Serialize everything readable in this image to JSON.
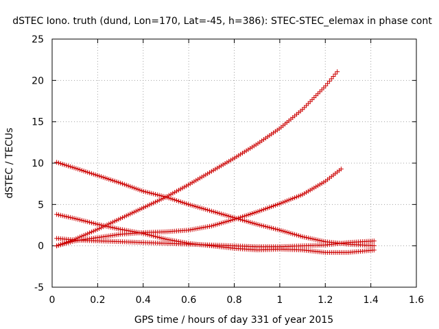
{
  "chart_data": {
    "type": "scatter",
    "title": "dSTEC Iono. truth (dund, Lon=170, Lat=-45, h=386): STEC-STEC_elemax in phase cont",
    "xlabel": "GPS time / hours of day 331 of year 2015",
    "ylabel": "dSTEC  / TECUs",
    "xlim": [
      0,
      1.6
    ],
    "ylim": [
      -5,
      25
    ],
    "xticks": [
      0,
      0.2,
      0.4,
      0.6,
      0.8,
      1,
      1.2,
      1.4,
      1.6
    ],
    "yticks": [
      -5,
      0,
      5,
      10,
      15,
      20,
      25
    ],
    "xtick_labels": [
      "0",
      "0.2",
      "0.4",
      "0.6",
      "0.8",
      "1",
      "1.2",
      "1.4",
      "1.6"
    ],
    "ytick_labels": [
      "-5",
      "0",
      "5",
      "10",
      "15",
      "20",
      "25"
    ],
    "grid": true,
    "marker": "+",
    "marker_color": "#cc0000",
    "series": [
      {
        "x": [
          0.02,
          0.1,
          0.2,
          0.3,
          0.4,
          0.5,
          0.6,
          0.7,
          0.8,
          0.9,
          1.0,
          1.1,
          1.2,
          1.26
        ],
        "values": [
          0.0,
          0.8,
          2.0,
          3.3,
          4.6,
          5.9,
          7.4,
          9.0,
          10.6,
          12.3,
          14.2,
          16.5,
          19.3,
          21.3
        ]
      },
      {
        "x": [
          0.02,
          0.1,
          0.2,
          0.3,
          0.4,
          0.5,
          0.6,
          0.7,
          0.8,
          0.9,
          1.0,
          1.1,
          1.2,
          1.27
        ],
        "values": [
          0.0,
          0.6,
          1.0,
          1.4,
          1.6,
          1.7,
          1.9,
          2.4,
          3.2,
          4.1,
          5.1,
          6.2,
          7.8,
          9.3
        ]
      },
      {
        "x": [
          0.02,
          0.1,
          0.2,
          0.3,
          0.4,
          0.5,
          0.6,
          0.7,
          0.8,
          0.9,
          1.0,
          1.1,
          1.2,
          1.3,
          1.42
        ],
        "values": [
          10.1,
          9.4,
          8.5,
          7.6,
          6.6,
          5.9,
          5.0,
          4.2,
          3.4,
          2.6,
          1.9,
          1.1,
          0.5,
          0.2,
          0.0
        ]
      },
      {
        "x": [
          0.02,
          0.1,
          0.2,
          0.3,
          0.4,
          0.5,
          0.6,
          0.7,
          0.8,
          0.9,
          1.0,
          1.1,
          1.2,
          1.3,
          1.42
        ],
        "values": [
          3.8,
          3.3,
          2.6,
          2.0,
          1.5,
          0.8,
          0.3,
          0.0,
          -0.3,
          -0.5,
          -0.4,
          -0.5,
          -0.8,
          -0.8,
          -0.5
        ]
      },
      {
        "x": [
          0.02,
          0.1,
          0.2,
          0.3,
          0.4,
          0.5,
          0.6,
          0.7,
          0.8,
          0.9,
          1.0,
          1.1,
          1.2,
          1.3,
          1.42
        ],
        "values": [
          0.9,
          0.7,
          0.6,
          0.5,
          0.4,
          0.3,
          0.2,
          0.1,
          0.0,
          -0.1,
          -0.1,
          0.0,
          0.1,
          0.4,
          0.6
        ]
      }
    ]
  }
}
